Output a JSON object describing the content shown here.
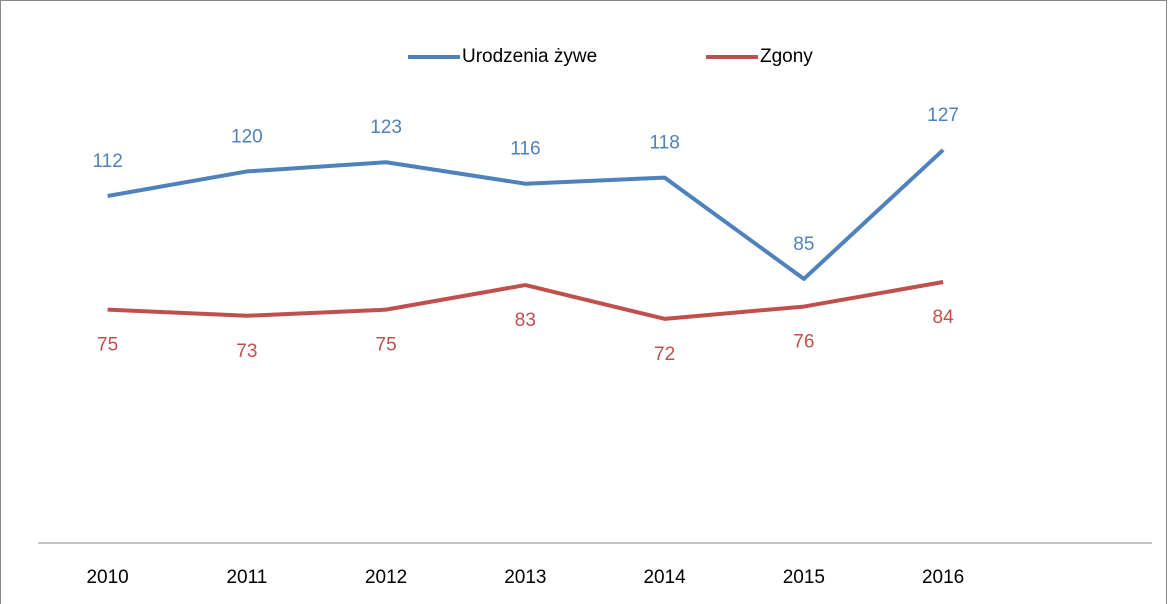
{
  "chart_data": {
    "type": "line",
    "categories": [
      "2010",
      "2011",
      "2012",
      "2013",
      "2014",
      "2015",
      "2016",
      null
    ],
    "series": [
      {
        "name": "Urodzenia żywe",
        "color": "#4f81bd",
        "values": [
          112,
          120,
          123,
          116,
          118,
          85,
          127,
          null
        ]
      },
      {
        "name": "Zgony",
        "color": "#c0504d",
        "values": [
          75,
          73,
          75,
          83,
          72,
          76,
          84,
          null
        ]
      }
    ],
    "ylim": [
      0,
      140
    ],
    "legend": "top"
  }
}
